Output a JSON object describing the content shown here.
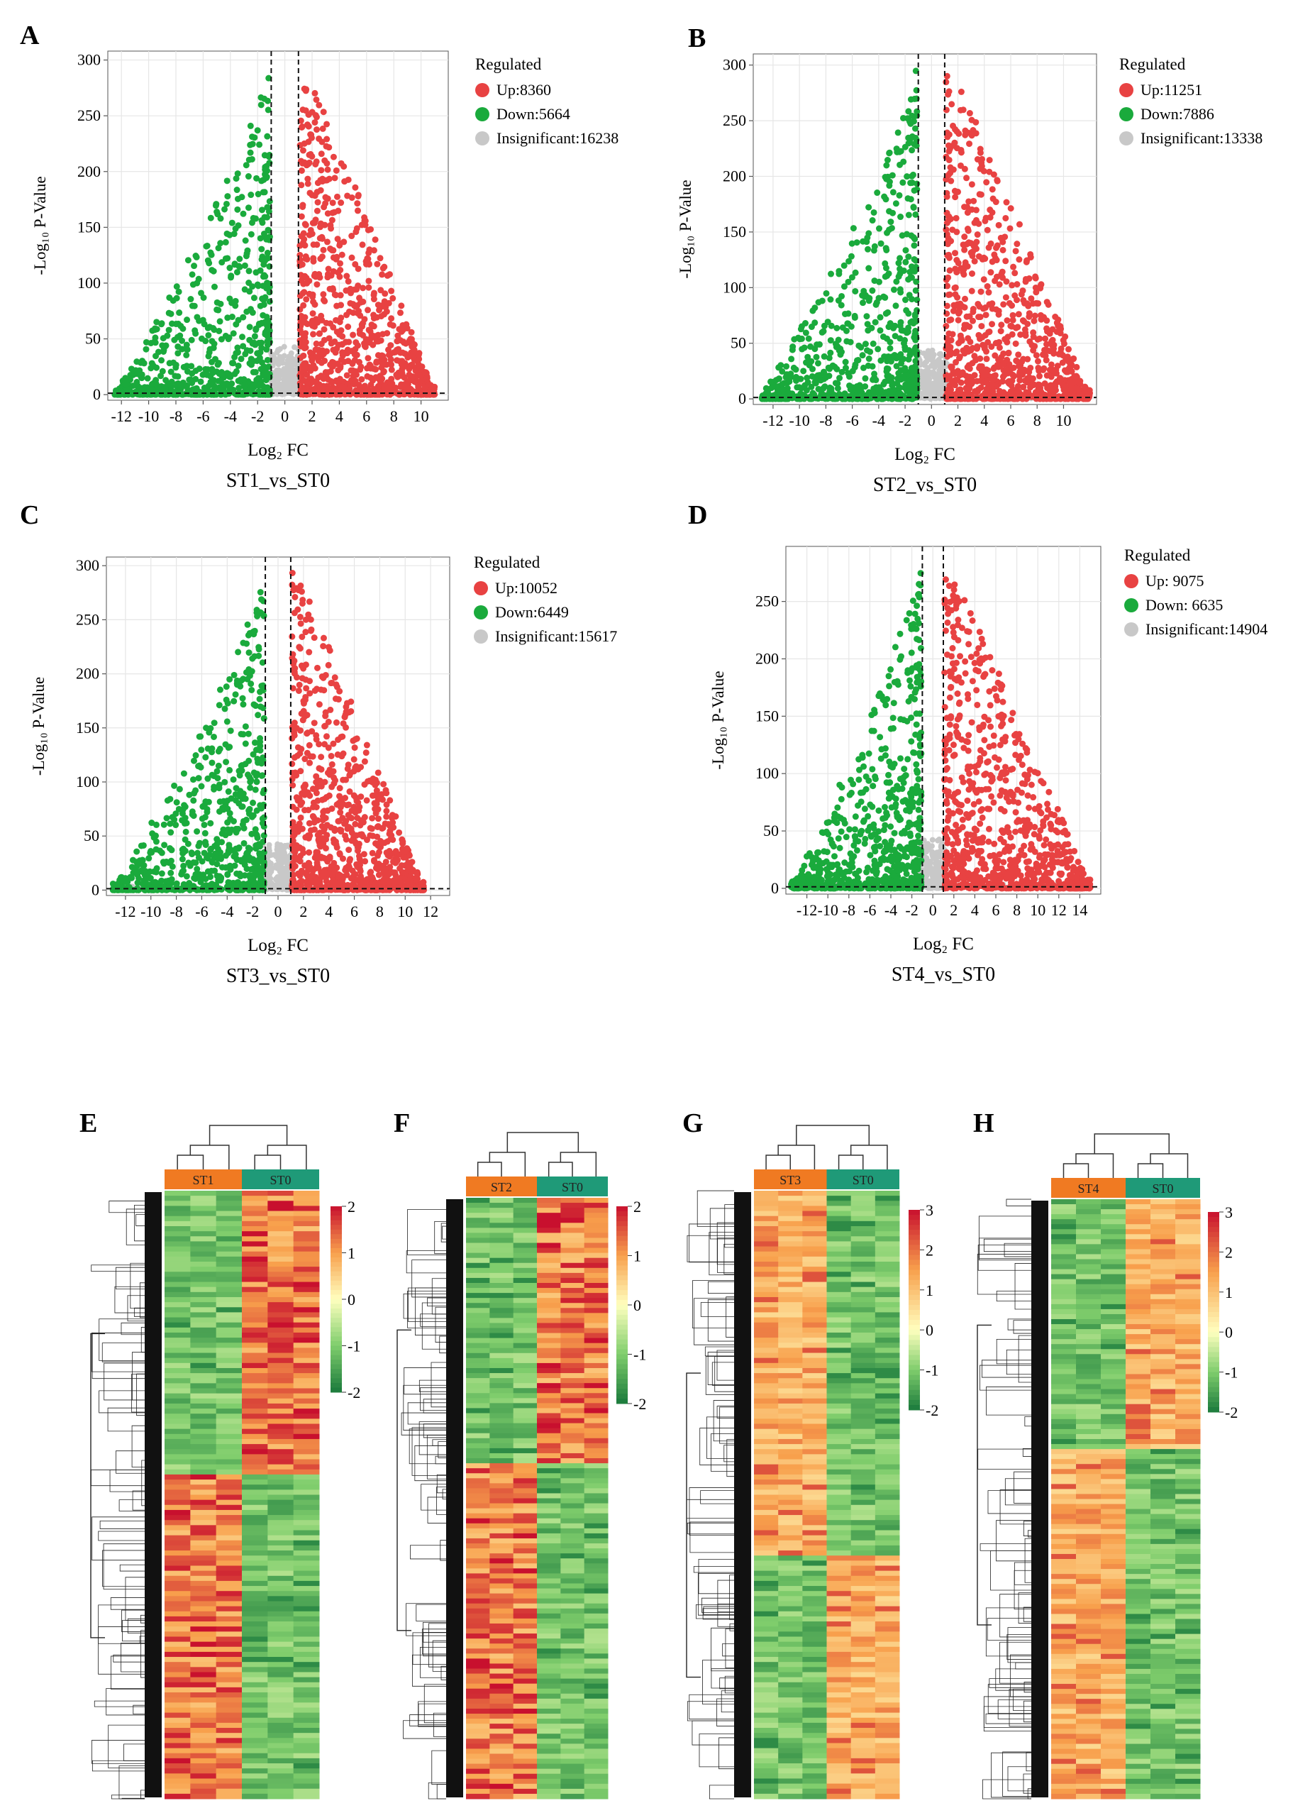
{
  "figure": {
    "colors": {
      "up": "#e84242",
      "down": "#1aaa3c",
      "insig": "#c8c8c8",
      "heat_high": "#c8102e",
      "heat_mid": "#ffffbf",
      "heat_low": "#1a7a3c",
      "group_case": "#f07a22",
      "group_ctrl": "#1f9a78"
    }
  },
  "chart_data": [
    {
      "type": "scatter",
      "panel": "A",
      "title": "ST1_vs_ST0",
      "xlabel": "Log₂ FC",
      "ylabel": "-Log₁₀ P-Value",
      "xlim": [
        -13,
        12
      ],
      "ylim": [
        -5,
        308
      ],
      "xticks": [
        -12,
        -10,
        -8,
        -6,
        -4,
        -2,
        0,
        2,
        4,
        6,
        8,
        10
      ],
      "yticks": [
        0,
        50,
        100,
        150,
        200,
        250,
        300
      ],
      "vlines": [
        -1,
        1
      ],
      "hline": 1.3,
      "legend_title": "Regulated",
      "legend": [
        "Up:8360",
        "Down:5664",
        "Insignificant:16238"
      ],
      "up_max_x": 11,
      "down_min_x": -12.5
    },
    {
      "type": "scatter",
      "panel": "B",
      "title": "ST2_vs_ST0",
      "xlabel": "Log₂ FC",
      "ylabel": "-Log₁₀ P-Value",
      "xlim": [
        -13.5,
        12.5
      ],
      "ylim": [
        -5,
        310
      ],
      "xticks": [
        -12,
        -10,
        -8,
        -6,
        -4,
        -2,
        0,
        2,
        4,
        6,
        8,
        10
      ],
      "yticks": [
        0,
        50,
        100,
        150,
        200,
        250,
        300
      ],
      "vlines": [
        -1,
        1
      ],
      "hline": 1.3,
      "legend_title": "Regulated",
      "legend": [
        "Up:11251",
        "Down:7886",
        "Insignificant:13338"
      ],
      "up_max_x": 12,
      "down_min_x": -13
    },
    {
      "type": "scatter",
      "panel": "C",
      "title": "ST3_vs_ST0",
      "xlabel": "Log₂ FC",
      "ylabel": "-Log₁₀ P-Value",
      "xlim": [
        -13.5,
        13.5
      ],
      "ylim": [
        -5,
        308
      ],
      "xticks": [
        -12,
        -10,
        -8,
        -6,
        -4,
        -2,
        0,
        2,
        4,
        6,
        8,
        10,
        12
      ],
      "yticks": [
        0,
        50,
        100,
        150,
        200,
        250,
        300
      ],
      "vlines": [
        -1,
        1
      ],
      "hline": 1.3,
      "legend_title": "Regulated",
      "legend": [
        "Up:10052",
        "Down:6449",
        "Insignificant:15617"
      ],
      "up_max_x": 11.5,
      "down_min_x": -13
    },
    {
      "type": "scatter",
      "panel": "D",
      "title": "ST4_vs_ST0",
      "xlabel": "Log₂ FC",
      "ylabel": "-Log₁₀ P-Value",
      "xlim": [
        -14,
        16
      ],
      "ylim": [
        -5,
        298
      ],
      "xticks": [
        -12,
        -10,
        -8,
        -6,
        -4,
        -2,
        0,
        2,
        4,
        6,
        8,
        10,
        12,
        14
      ],
      "yticks": [
        0,
        50,
        100,
        150,
        200,
        250
      ],
      "vlines": [
        -1,
        1
      ],
      "hline": 1.3,
      "legend_title": "Regulated",
      "legend": [
        "Up: 9075",
        "Down: 6635",
        "Insignificant:14904"
      ],
      "up_max_x": 15,
      "down_min_x": -13.5
    },
    {
      "type": "heatmap",
      "panel": "E",
      "groups": [
        "ST1",
        "ST0"
      ],
      "color_scale": [
        -2,
        2
      ],
      "colorbar_ticks": [
        2,
        1,
        0,
        -1,
        -2
      ],
      "top_case_high": false,
      "split": 0.47
    },
    {
      "type": "heatmap",
      "panel": "F",
      "groups": [
        "ST2",
        "ST0"
      ],
      "color_scale": [
        -2,
        2
      ],
      "colorbar_ticks": [
        2,
        1,
        0,
        -1,
        -2
      ],
      "top_case_high": false,
      "split": 0.44
    },
    {
      "type": "heatmap",
      "panel": "G",
      "groups": [
        "ST3",
        "ST0"
      ],
      "color_scale": [
        -2,
        3
      ],
      "colorbar_ticks": [
        3,
        2,
        1,
        0,
        -1,
        -2
      ],
      "top_case_high": true,
      "split": 0.6
    },
    {
      "type": "heatmap",
      "panel": "H",
      "groups": [
        "ST4",
        "ST0"
      ],
      "color_scale": [
        -2,
        3
      ],
      "colorbar_ticks": [
        3,
        2,
        1,
        0,
        -1,
        -2
      ],
      "top_case_high": false,
      "split": 0.42
    }
  ]
}
